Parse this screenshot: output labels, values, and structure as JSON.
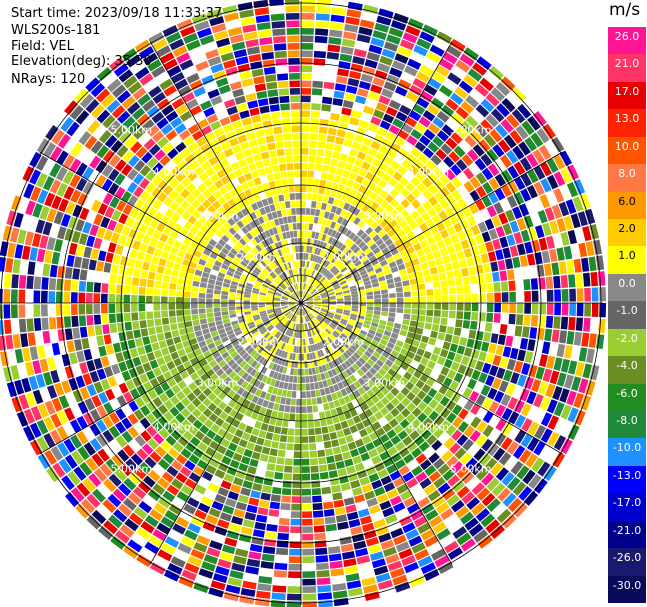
{
  "info": {
    "start_time": "Start time: 2023/09/18 11:33:37",
    "station": "WLS200s-181",
    "field": "Field: VEL",
    "elevation": "Elevation(deg): 35.30",
    "nrays": "NRays: 120"
  },
  "range_ring_label": "2.00km",
  "range_ring_labels_outer": [
    "2.00km",
    "3.00km",
    "4.00km",
    "5.00km"
  ],
  "colorbar": {
    "unit": "m/s",
    "ticks": [
      "26.0",
      "21.0",
      "17.0",
      "13.0",
      "10.0",
      "8.0",
      "6.0",
      "2.0",
      "1.0",
      "0.0",
      "-1.0",
      "-2.0",
      "-4.0",
      "-6.0",
      "-8.0",
      "-10.0",
      "-13.0",
      "-17.0",
      "-21.0",
      "-26.0",
      "-30.0"
    ],
    "colors": [
      "#ff1493",
      "#ff3366",
      "#e80000",
      "#ff2200",
      "#ff5500",
      "#ff7744",
      "#ff9900",
      "#ffcc00",
      "#ffff00",
      "#888888",
      "#666666",
      "#9acd32",
      "#6b8e23",
      "#228b22",
      "#1e8a3a",
      "#1e90ff",
      "#0000ff",
      "#0000cd",
      "#00008b",
      "#191970",
      "#0a0a5a"
    ]
  }
}
